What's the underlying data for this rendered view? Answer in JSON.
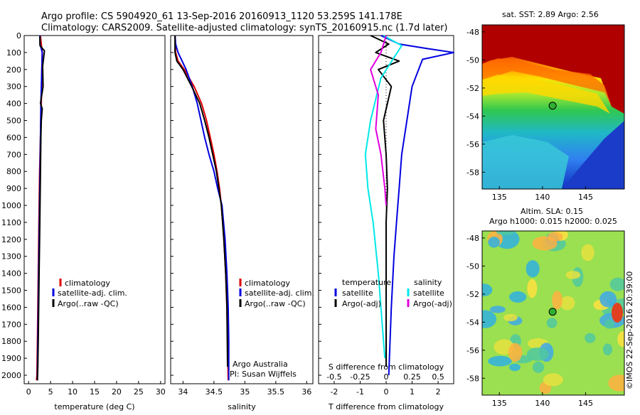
{
  "header": {
    "line1": "Argo profile: CS 5904920_61 13-Sep-2016 20160913_1120 53.259S 141.178E",
    "line2": "Climatology: CARS2009. Satellite-adjusted climatology: synTS_20160915.nc (1.7d later)"
  },
  "colors": {
    "climatology": "#e00000",
    "satellite": "#0000e0",
    "argo": "#000000",
    "sal_satellite": "#00e8e8",
    "sal_argo": "#e000e0"
  },
  "legend": {
    "climatology": "climatology",
    "satellite_adj": "satellite-adj. clim.",
    "argo_raw": "Argo(..raw -QC)",
    "temperature": "temperature",
    "salinity": "salinity",
    "satellite": "satellite",
    "argo_adj": "Argo(-adj)"
  },
  "credits": {
    "line1": "Argo Australia",
    "line2": "PI: Susan Wijffels"
  },
  "sst_map": {
    "title": "sat. SST: 2.89 Argo: 2.56",
    "float_lon": 141.178,
    "float_lat": -53.259
  },
  "sla_map": {
    "title1": "Altim. SLA: 0.15",
    "title2": "Argo h1000: 0.015 h2000: 0.025",
    "stamp": "©IMOS 22-Sep-2016 20:39:00"
  },
  "chart_data": [
    {
      "type": "line",
      "panel": "temperature",
      "xlabel": "temperature (deg C)",
      "ylabel": "",
      "xlim": [
        -1,
        31
      ],
      "ylim": [
        2050,
        0
      ],
      "xticks": [
        "0",
        "5",
        "10",
        "15",
        "20",
        "25",
        "30"
      ],
      "yticks": [
        "0",
        "100",
        "200",
        "300",
        "400",
        "500",
        "600",
        "700",
        "800",
        "900",
        "1000",
        "1100",
        "1200",
        "1300",
        "1400",
        "1500",
        "1600",
        "1700",
        "1800",
        "1900",
        "2000"
      ],
      "series": [
        {
          "name": "climatology",
          "color": "#e00000",
          "x": [
            2.7,
            2.9,
            3.1,
            3.0,
            2.95,
            2.9,
            2.8,
            2.7,
            2.6,
            2.5,
            2.4,
            2.3,
            2.2,
            2.1,
            2.0,
            1.9,
            1.8
          ],
          "y": [
            0,
            50,
            100,
            200,
            300,
            400,
            500,
            600,
            700,
            800,
            1000,
            1200,
            1400,
            1600,
            1800,
            2000,
            2030
          ]
        },
        {
          "name": "satellite-adj. clim.",
          "color": "#0000e0",
          "x": [
            2.6,
            2.6,
            3.1,
            3.0,
            2.9,
            2.8,
            2.75,
            2.7,
            2.65,
            2.6,
            2.5,
            2.4,
            2.3,
            2.2,
            2.1,
            2.0,
            2.0
          ],
          "y": [
            0,
            50,
            100,
            200,
            300,
            400,
            500,
            600,
            700,
            800,
            1000,
            1200,
            1400,
            1600,
            1800,
            2000,
            2030
          ]
        },
        {
          "name": "Argo(..raw -QC)",
          "color": "#000000",
          "x": [
            2.56,
            2.6,
            3.6,
            3.2,
            3.3,
            2.7,
            3.1,
            2.9,
            2.8,
            2.7,
            2.6,
            2.5,
            2.4,
            2.3,
            2.2,
            2.1,
            2.0
          ],
          "y": [
            5,
            60,
            90,
            180,
            300,
            400,
            430,
            500,
            600,
            800,
            1000,
            1200,
            1400,
            1600,
            1800,
            1950,
            2030
          ]
        }
      ]
    },
    {
      "type": "line",
      "panel": "salinity",
      "xlabel": "salinity",
      "ylabel": "",
      "xlim": [
        33.8,
        36.1
      ],
      "ylim": [
        2050,
        0
      ],
      "xticks": [
        "34",
        "34.5",
        "35",
        "35.5",
        "36"
      ],
      "series": [
        {
          "name": "climatology",
          "color": "#e00000",
          "x": [
            33.87,
            33.88,
            33.92,
            34.02,
            34.18,
            34.3,
            34.38,
            34.44,
            34.5,
            34.55,
            34.59,
            34.62,
            34.66,
            34.69,
            34.71,
            34.72,
            34.73
          ],
          "y": [
            0,
            100,
            150,
            200,
            300,
            400,
            500,
            600,
            700,
            800,
            900,
            1000,
            1200,
            1400,
            1600,
            1800,
            2030
          ]
        },
        {
          "name": "satellite-adj. clim.",
          "color": "#0000e0",
          "x": [
            33.87,
            33.88,
            33.92,
            34.05,
            34.15,
            34.23,
            34.29,
            34.35,
            34.42,
            34.5,
            34.56,
            34.63,
            34.68,
            34.71,
            34.73,
            34.74,
            34.74
          ],
          "y": [
            0,
            50,
            100,
            200,
            300,
            400,
            500,
            600,
            700,
            800,
            900,
            1000,
            1200,
            1400,
            1600,
            1800,
            2030
          ]
        },
        {
          "name": "Argo(..raw -QC)",
          "color": "#000000",
          "x": [
            33.87,
            33.87,
            33.9,
            34.0,
            34.14,
            34.27,
            34.35,
            34.42,
            34.48,
            34.54,
            34.58,
            34.62,
            34.66,
            34.69,
            34.71,
            34.72
          ],
          "y": [
            0,
            100,
            150,
            200,
            300,
            400,
            500,
            600,
            700,
            800,
            900,
            1000,
            1200,
            1400,
            1600,
            1950
          ]
        }
      ]
    },
    {
      "type": "line",
      "panel": "differences",
      "xlabel": "T difference from climatology",
      "xlabel2": "S difference from climatology",
      "xlim": [
        -2.6,
        2.6
      ],
      "ylim": [
        2050,
        0
      ],
      "xticks": [
        "-2",
        "-1",
        "0",
        "1",
        "2"
      ],
      "xticks_top": [
        "-0.5",
        "-0.25",
        "0",
        "0.25",
        "0.5"
      ],
      "series": [
        {
          "name": "temperature satellite",
          "color": "#0000e0",
          "x": [
            -0.2,
            0.5,
            1.5,
            2.6,
            1.4,
            1.0,
            0.8,
            0.6,
            0.5,
            0.4,
            0.3,
            0.2,
            0.15,
            0.1
          ],
          "y": [
            0,
            50,
            75,
            100,
            140,
            300,
            500,
            700,
            900,
            1100,
            1300,
            1600,
            1800,
            2000
          ]
        },
        {
          "name": "temperature Argo(-adj)",
          "color": "#000000",
          "x": [
            -0.6,
            0.1,
            -0.4,
            0.5,
            -0.3,
            0.2,
            -0.1,
            0.0,
            0.05,
            0.0,
            0.0,
            0.0,
            0.0
          ],
          "y": [
            0,
            50,
            100,
            150,
            200,
            300,
            500,
            700,
            900,
            1100,
            1400,
            1700,
            1950
          ]
        },
        {
          "name": "salinity satellite",
          "color": "#00e8e8",
          "x": [
            -0.1,
            0.6,
            0.3,
            -0.2,
            -0.6,
            -0.8,
            -0.7,
            -0.5,
            -0.3,
            -0.15,
            -0.05
          ],
          "y": [
            0,
            60,
            130,
            250,
            500,
            700,
            900,
            1100,
            1400,
            1700,
            1900
          ]
        },
        {
          "name": "salinity Argo(-adj)",
          "color": "#e000e0",
          "x": [
            0.0,
            -0.2,
            -0.6,
            -0.3,
            -0.4,
            -0.2,
            -0.05,
            0.0
          ],
          "y": [
            0,
            100,
            200,
            350,
            550,
            700,
            900,
            1000
          ]
        }
      ]
    },
    {
      "type": "heatmap",
      "panel": "sat. SST",
      "title": "sat. SST: 2.89 Argo: 2.56",
      "xlim": [
        133,
        149.5
      ],
      "ylim": [
        -59.2,
        -47.5
      ],
      "xticks": [
        "135",
        "140",
        "145"
      ],
      "yticks": [
        "-48",
        "-50",
        "-52",
        "-54",
        "-56",
        "-58"
      ]
    },
    {
      "type": "heatmap",
      "panel": "Altim. SLA",
      "title": "Altim. SLA: 0.15",
      "xlim": [
        133,
        149.5
      ],
      "ylim": [
        -59.2,
        -47.5
      ],
      "xticks": [
        "135",
        "140",
        "145"
      ],
      "yticks": [
        "-48",
        "-50",
        "-52",
        "-54",
        "-56",
        "-58"
      ]
    }
  ]
}
